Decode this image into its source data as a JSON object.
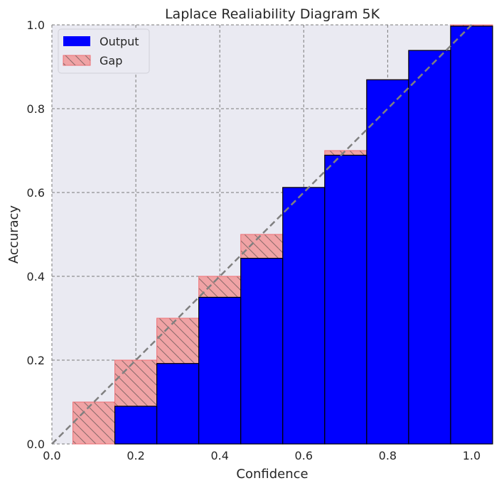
{
  "chart_data": {
    "type": "bar",
    "title": "Laplace Realiability Diagram 5K",
    "xlabel": "Confidence",
    "ylabel": "Accuracy",
    "xlim": [
      0.0,
      1.05
    ],
    "ylim": [
      0.0,
      1.0
    ],
    "xticks": [
      "0.0",
      "0.2",
      "0.4",
      "0.6",
      "0.8",
      "1.0"
    ],
    "yticks": [
      "0.0",
      "0.2",
      "0.4",
      "0.6",
      "0.8",
      "1.0"
    ],
    "bin_centers": [
      0.1,
      0.2,
      0.3,
      0.4,
      0.5,
      0.6,
      0.7,
      0.8,
      0.9,
      1.0
    ],
    "bin_width": 0.1,
    "series": [
      {
        "name": "Output",
        "values": [
          0.0,
          0.09,
          0.192,
          0.35,
          0.443,
          0.612,
          0.689,
          0.869,
          0.939,
          0.997
        ]
      },
      {
        "name": "Gap",
        "values": [
          0.1,
          0.2,
          0.3,
          0.4,
          0.5,
          0.6,
          0.7,
          0.8,
          0.9,
          1.0
        ]
      }
    ],
    "legend": {
      "position": "top-left",
      "entries": [
        "Output",
        "Gap"
      ]
    },
    "grid": true,
    "colors": {
      "output": "#0000ff",
      "gap_fill": "#f0a3a5",
      "gap_edge": "#ef6f74",
      "hatch": "#8a6a6a",
      "diagonal": "#808080",
      "plot_bg": "#eaeaf2",
      "grid": "#7a7a7a"
    }
  }
}
